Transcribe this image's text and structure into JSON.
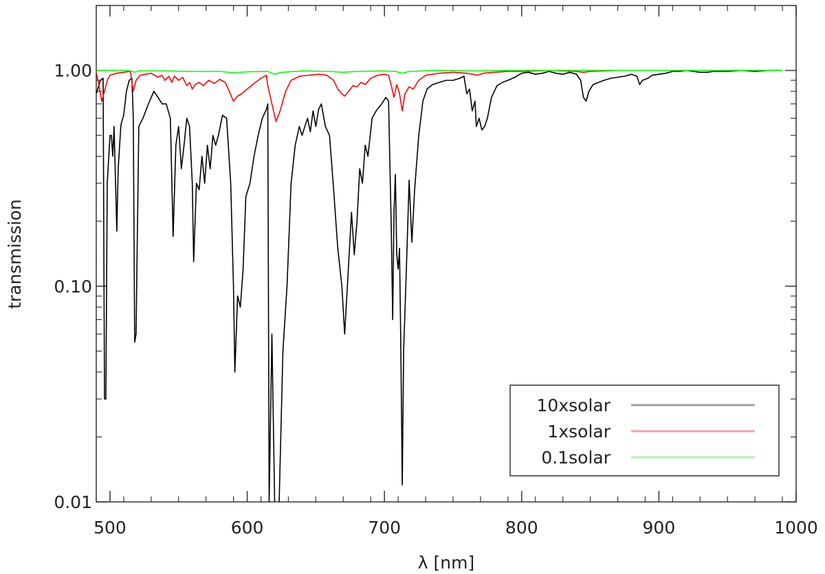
{
  "chart_data": {
    "type": "line",
    "title": "",
    "xlabel": "λ [nm]",
    "ylabel": "transmission",
    "xlim": [
      490,
      1000
    ],
    "ylim": [
      0.01,
      2.0
    ],
    "yscale": "log",
    "x_ticks": [
      500,
      600,
      700,
      800,
      900,
      1000
    ],
    "x_tick_labels": [
      "500",
      "600",
      "700",
      "800",
      "900",
      "1000"
    ],
    "y_ticks": [
      0.01,
      0.1,
      1.0
    ],
    "y_tick_labels": [
      "0.01",
      "0.10",
      "1.00"
    ],
    "grid": false,
    "legend_position": "bottom-right",
    "series": [
      {
        "name": "10xsolar",
        "color": "#000000",
        "legend_color": "#a0a0a0",
        "points": [
          [
            490,
            0.78
          ],
          [
            493,
            0.9
          ],
          [
            495,
            0.92
          ],
          [
            496,
            0.03
          ],
          [
            497,
            0.03
          ],
          [
            498,
            0.3
          ],
          [
            500,
            0.5
          ],
          [
            501,
            0.5
          ],
          [
            502,
            0.4
          ],
          [
            503,
            0.55
          ],
          [
            505,
            0.18
          ],
          [
            506,
            0.35
          ],
          [
            508,
            0.56
          ],
          [
            510,
            0.62
          ],
          [
            512,
            0.8
          ],
          [
            514,
            0.9
          ],
          [
            516,
            0.92
          ],
          [
            517,
            0.6
          ],
          [
            518,
            0.055
          ],
          [
            519,
            0.06
          ],
          [
            521,
            0.55
          ],
          [
            524,
            0.6
          ],
          [
            528,
            0.7
          ],
          [
            532,
            0.8
          ],
          [
            535,
            0.75
          ],
          [
            538,
            0.7
          ],
          [
            541,
            0.7
          ],
          [
            544,
            0.6
          ],
          [
            546,
            0.17
          ],
          [
            548,
            0.45
          ],
          [
            550,
            0.55
          ],
          [
            552,
            0.35
          ],
          [
            554,
            0.45
          ],
          [
            556,
            0.6
          ],
          [
            558,
            0.55
          ],
          [
            560,
            0.3
          ],
          [
            561,
            0.13
          ],
          [
            563,
            0.3
          ],
          [
            565,
            0.28
          ],
          [
            567,
            0.4
          ],
          [
            569,
            0.3
          ],
          [
            571,
            0.45
          ],
          [
            573,
            0.35
          ],
          [
            575,
            0.5
          ],
          [
            577,
            0.45
          ],
          [
            579,
            0.5
          ],
          [
            582,
            0.62
          ],
          [
            585,
            0.6
          ],
          [
            588,
            0.3
          ],
          [
            590,
            0.1
          ],
          [
            591,
            0.04
          ],
          [
            593,
            0.09
          ],
          [
            595,
            0.08
          ],
          [
            597,
            0.12
          ],
          [
            599,
            0.26
          ],
          [
            602,
            0.3
          ],
          [
            605,
            0.4
          ],
          [
            608,
            0.5
          ],
          [
            611,
            0.6
          ],
          [
            614,
            0.66
          ],
          [
            615,
            0.7
          ],
          [
            616,
            0.01
          ],
          [
            618,
            0.06
          ],
          [
            620,
            0.01
          ],
          [
            623,
            0.0085
          ],
          [
            626,
            0.05
          ],
          [
            629,
            0.1
          ],
          [
            632,
            0.3
          ],
          [
            635,
            0.45
          ],
          [
            638,
            0.55
          ],
          [
            640,
            0.5
          ],
          [
            642,
            0.55
          ],
          [
            644,
            0.6
          ],
          [
            646,
            0.52
          ],
          [
            648,
            0.65
          ],
          [
            650,
            0.55
          ],
          [
            652,
            0.66
          ],
          [
            654,
            0.7
          ],
          [
            657,
            0.55
          ],
          [
            660,
            0.5
          ],
          [
            663,
            0.28
          ],
          [
            666,
            0.15
          ],
          [
            669,
            0.1
          ],
          [
            671,
            0.06
          ],
          [
            673,
            0.1
          ],
          [
            676,
            0.22
          ],
          [
            678,
            0.14
          ],
          [
            680,
            0.2
          ],
          [
            682,
            0.35
          ],
          [
            684,
            0.3
          ],
          [
            686,
            0.45
          ],
          [
            688,
            0.4
          ],
          [
            691,
            0.6
          ],
          [
            694,
            0.65
          ],
          [
            698,
            0.7
          ],
          [
            701,
            0.75
          ],
          [
            703,
            0.72
          ],
          [
            705,
            0.18
          ],
          [
            706,
            0.07
          ],
          [
            707,
            0.22
          ],
          [
            708,
            0.33
          ],
          [
            709,
            0.14
          ],
          [
            710,
            0.12
          ],
          [
            711,
            0.15
          ],
          [
            712,
            0.05
          ],
          [
            713,
            0.012
          ],
          [
            714,
            0.05
          ],
          [
            716,
            0.12
          ],
          [
            718,
            0.31
          ],
          [
            720,
            0.16
          ],
          [
            722,
            0.28
          ],
          [
            725,
            0.5
          ],
          [
            728,
            0.72
          ],
          [
            731,
            0.82
          ],
          [
            735,
            0.86
          ],
          [
            740,
            0.88
          ],
          [
            745,
            0.9
          ],
          [
            750,
            0.9
          ],
          [
            755,
            0.92
          ],
          [
            758,
            0.94
          ],
          [
            760,
            0.78
          ],
          [
            762,
            0.82
          ],
          [
            764,
            0.65
          ],
          [
            766,
            0.72
          ],
          [
            767,
            0.55
          ],
          [
            769,
            0.6
          ],
          [
            771,
            0.53
          ],
          [
            773,
            0.55
          ],
          [
            775,
            0.6
          ],
          [
            778,
            0.75
          ],
          [
            782,
            0.85
          ],
          [
            786,
            0.88
          ],
          [
            790,
            0.9
          ],
          [
            795,
            0.93
          ],
          [
            800,
            0.97
          ],
          [
            805,
            0.98
          ],
          [
            810,
            0.96
          ],
          [
            815,
            0.97
          ],
          [
            820,
            0.99
          ],
          [
            825,
            0.97
          ],
          [
            830,
            0.96
          ],
          [
            835,
            0.98
          ],
          [
            840,
            0.96
          ],
          [
            843,
            0.9
          ],
          [
            845,
            0.75
          ],
          [
            847,
            0.72
          ],
          [
            849,
            0.8
          ],
          [
            852,
            0.86
          ],
          [
            856,
            0.88
          ],
          [
            860,
            0.9
          ],
          [
            865,
            0.92
          ],
          [
            870,
            0.93
          ],
          [
            875,
            0.94
          ],
          [
            880,
            0.96
          ],
          [
            884,
            0.94
          ],
          [
            886,
            0.86
          ],
          [
            888,
            0.9
          ],
          [
            892,
            0.92
          ],
          [
            895,
            0.95
          ],
          [
            900,
            0.96
          ],
          [
            905,
            0.97
          ],
          [
            910,
            0.99
          ],
          [
            915,
            0.99
          ],
          [
            920,
            1.0
          ],
          [
            925,
            0.99
          ],
          [
            930,
            0.98
          ],
          [
            935,
            0.98
          ],
          [
            940,
            0.99
          ],
          [
            950,
            0.99
          ],
          [
            960,
            1.0
          ],
          [
            970,
            0.99
          ],
          [
            980,
            1.0
          ],
          [
            990,
            1.0
          ]
        ]
      },
      {
        "name": "1xsolar",
        "color": "#ff0000",
        "legend_color": "#f2a0a8",
        "points": [
          [
            490,
            0.98
          ],
          [
            492,
            0.85
          ],
          [
            494,
            0.72
          ],
          [
            496,
            0.8
          ],
          [
            498,
            0.9
          ],
          [
            500,
            0.95
          ],
          [
            505,
            0.97
          ],
          [
            510,
            0.98
          ],
          [
            514,
            0.99
          ],
          [
            515,
            0.98
          ],
          [
            517,
            0.8
          ],
          [
            519,
            0.9
          ],
          [
            522,
            0.95
          ],
          [
            526,
            0.96
          ],
          [
            530,
            0.97
          ],
          [
            535,
            0.93
          ],
          [
            538,
            0.95
          ],
          [
            540,
            0.9
          ],
          [
            543,
            0.94
          ],
          [
            545,
            0.88
          ],
          [
            547,
            0.94
          ],
          [
            550,
            0.9
          ],
          [
            553,
            0.93
          ],
          [
            556,
            0.85
          ],
          [
            558,
            0.88
          ],
          [
            560,
            0.82
          ],
          [
            562,
            0.86
          ],
          [
            565,
            0.88
          ],
          [
            568,
            0.85
          ],
          [
            572,
            0.9
          ],
          [
            576,
            0.87
          ],
          [
            580,
            0.91
          ],
          [
            584,
            0.88
          ],
          [
            587,
            0.8
          ],
          [
            590,
            0.72
          ],
          [
            593,
            0.76
          ],
          [
            596,
            0.78
          ],
          [
            600,
            0.82
          ],
          [
            605,
            0.87
          ],
          [
            610,
            0.92
          ],
          [
            614,
            0.95
          ],
          [
            615,
            0.85
          ],
          [
            618,
            0.7
          ],
          [
            621,
            0.58
          ],
          [
            624,
            0.65
          ],
          [
            628,
            0.8
          ],
          [
            632,
            0.9
          ],
          [
            638,
            0.94
          ],
          [
            645,
            0.95
          ],
          [
            652,
            0.96
          ],
          [
            658,
            0.95
          ],
          [
            663,
            0.9
          ],
          [
            666,
            0.82
          ],
          [
            669,
            0.78
          ],
          [
            671,
            0.76
          ],
          [
            674,
            0.8
          ],
          [
            677,
            0.85
          ],
          [
            680,
            0.84
          ],
          [
            683,
            0.88
          ],
          [
            686,
            0.86
          ],
          [
            690,
            0.92
          ],
          [
            695,
            0.95
          ],
          [
            700,
            0.96
          ],
          [
            703,
            0.95
          ],
          [
            705,
            0.85
          ],
          [
            707,
            0.75
          ],
          [
            709,
            0.86
          ],
          [
            711,
            0.78
          ],
          [
            713,
            0.65
          ],
          [
            715,
            0.78
          ],
          [
            718,
            0.84
          ],
          [
            721,
            0.82
          ],
          [
            725,
            0.9
          ],
          [
            730,
            0.95
          ],
          [
            740,
            0.97
          ],
          [
            750,
            0.98
          ],
          [
            760,
            0.97
          ],
          [
            764,
            0.96
          ],
          [
            768,
            0.95
          ],
          [
            772,
            0.97
          ],
          [
            780,
            0.98
          ],
          [
            790,
            0.99
          ],
          [
            800,
            0.99
          ],
          [
            820,
            1.0
          ],
          [
            840,
            0.99
          ],
          [
            845,
            0.98
          ],
          [
            850,
            0.99
          ],
          [
            870,
            1.0
          ]
        ]
      },
      {
        "name": "0.1solar",
        "color": "#00ff00",
        "legend_color": "#a8f5a8",
        "points": [
          [
            490,
            1.0
          ],
          [
            500,
            1.0
          ],
          [
            510,
            1.0
          ],
          [
            515,
            0.995
          ],
          [
            518,
            0.98
          ],
          [
            521,
            0.995
          ],
          [
            540,
            0.995
          ],
          [
            560,
            0.99
          ],
          [
            580,
            0.99
          ],
          [
            590,
            0.975
          ],
          [
            600,
            0.985
          ],
          [
            615,
            0.99
          ],
          [
            620,
            0.96
          ],
          [
            625,
            0.98
          ],
          [
            640,
            0.995
          ],
          [
            660,
            0.99
          ],
          [
            670,
            0.98
          ],
          [
            680,
            0.99
          ],
          [
            700,
            0.995
          ],
          [
            708,
            0.99
          ],
          [
            713,
            0.97
          ],
          [
            718,
            0.99
          ],
          [
            740,
            1.0
          ],
          [
            760,
            0.995
          ],
          [
            770,
            0.995
          ],
          [
            790,
            1.0
          ],
          [
            850,
            1.0
          ],
          [
            900,
            1.0
          ],
          [
            950,
            1.0
          ],
          [
            990,
            1.0
          ]
        ]
      }
    ]
  }
}
